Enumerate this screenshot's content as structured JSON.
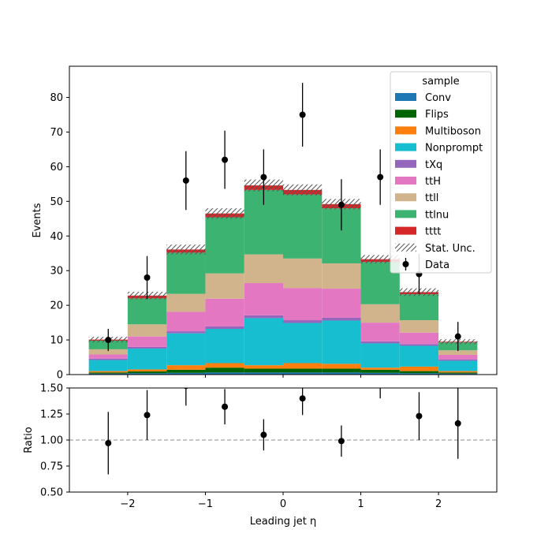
{
  "chart_data": {
    "type": "bar",
    "stacked": true,
    "bin_edges": [
      -2.5,
      -2.0,
      -1.5,
      -1.0,
      -0.5,
      0.0,
      0.5,
      1.0,
      1.5,
      2.0,
      2.5
    ],
    "x": [
      -2.25,
      -1.75,
      -1.25,
      -0.75,
      -0.25,
      0.25,
      0.75,
      1.25,
      1.75,
      2.25
    ],
    "xlabel": "Leading jet  η",
    "ylabel": "Events",
    "ylim": [
      0,
      89
    ],
    "xlim": [
      -2.75,
      2.75
    ],
    "xticks": [
      "−2",
      "−1",
      "0",
      "1",
      "2"
    ],
    "xtick_values": [
      -2,
      -1,
      0,
      1,
      2
    ],
    "yticks": [
      "0",
      "10",
      "20",
      "30",
      "40",
      "50",
      "60",
      "70",
      "80"
    ],
    "ytick_values": [
      0,
      10,
      20,
      30,
      40,
      50,
      60,
      70,
      80
    ],
    "legend": {
      "title": "sample",
      "placement": "top-right"
    },
    "series": [
      {
        "name": "Conv",
        "color": "#1f77b4",
        "values": [
          0.3,
          0.4,
          0.5,
          0.6,
          0.6,
          0.6,
          0.6,
          0.5,
          0.4,
          0.3
        ]
      },
      {
        "name": "Flips",
        "color": "#006400",
        "values": [
          0.3,
          0.5,
          0.9,
          1.4,
          1.1,
          1.1,
          1.1,
          0.9,
          0.6,
          0.3
        ]
      },
      {
        "name": "Multiboson",
        "color": "#ff7f0e",
        "values": [
          0.4,
          0.6,
          1.3,
          1.3,
          1.0,
          1.6,
          1.4,
          0.6,
          1.3,
          0.4
        ]
      },
      {
        "name": "Nonprompt",
        "color": "#17becf",
        "values": [
          3.2,
          6.0,
          9.2,
          9.9,
          13.6,
          11.6,
          12.5,
          7.0,
          6.0,
          3.0
        ]
      },
      {
        "name": "tXq",
        "color": "#9467bd",
        "values": [
          0.4,
          0.5,
          0.6,
          0.7,
          0.8,
          0.8,
          0.8,
          0.6,
          0.5,
          0.4
        ]
      },
      {
        "name": "ttH",
        "color": "#e377c2",
        "values": [
          1.2,
          3.0,
          5.6,
          8.0,
          9.3,
          9.3,
          8.4,
          5.4,
          3.3,
          1.3
        ]
      },
      {
        "name": "ttll",
        "color": "#d2b48c",
        "values": [
          1.5,
          3.5,
          5.2,
          7.3,
          8.3,
          8.5,
          7.3,
          5.3,
          3.6,
          1.3
        ]
      },
      {
        "name": "ttlnu",
        "color": "#3cb371",
        "values": [
          2.5,
          7.5,
          11.9,
          16.2,
          18.6,
          18.5,
          15.9,
          12.2,
          7.5,
          2.3
        ]
      },
      {
        "name": "tttt",
        "color": "#d62728",
        "values": [
          0.3,
          0.8,
          0.9,
          1.1,
          1.3,
          1.3,
          1.2,
          0.8,
          0.6,
          0.2
        ]
      }
    ],
    "stat_unc": {
      "name": "Stat. Unc.",
      "values": [
        0.8,
        1.1,
        1.4,
        1.5,
        1.7,
        1.6,
        1.5,
        1.2,
        1.1,
        0.7
      ]
    },
    "data": {
      "name": "Data",
      "values": [
        10,
        28,
        56,
        62,
        57,
        75,
        49,
        57,
        29,
        11
      ],
      "err": [
        3.2,
        6.2,
        8.5,
        8.4,
        8.0,
        9.2,
        7.4,
        8.0,
        5.8,
        4.2
      ]
    },
    "ratio": {
      "ylabel": "Ratio",
      "ylim": [
        0.5,
        1.5
      ],
      "yticks": [
        "0.50",
        "0.75",
        "1.00",
        "1.25",
        "1.50"
      ],
      "ytick_values": [
        0.5,
        0.75,
        1.0,
        1.25,
        1.5
      ],
      "reference": 1.0,
      "values": [
        0.97,
        1.24,
        1.52,
        1.32,
        1.05,
        1.4,
        0.99,
        1.65,
        1.23,
        1.16
      ],
      "err": [
        0.3,
        0.24,
        0.19,
        0.17,
        0.15,
        0.16,
        0.15,
        0.25,
        0.23,
        0.34
      ]
    }
  }
}
